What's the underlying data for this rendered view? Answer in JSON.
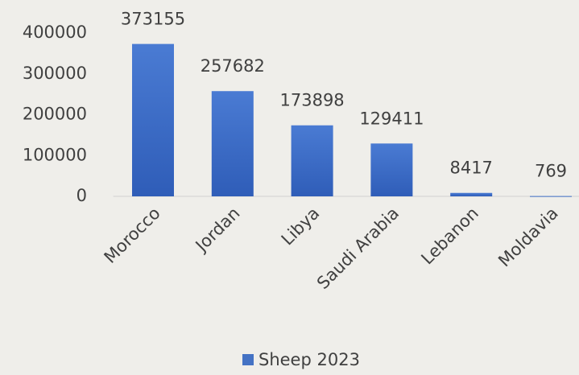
{
  "chart_data": {
    "type": "bar",
    "categories": [
      "Morocco",
      "Jordan",
      "Libya",
      "Saudi Arabia",
      "Lebanon",
      "Moldavia"
    ],
    "series": [
      {
        "name": "Sheep 2023",
        "color": "#4472c4",
        "values": [
          373155,
          257682,
          173898,
          129411,
          8417,
          769
        ]
      }
    ],
    "ylim": [
      0,
      400000
    ],
    "yticks": [
      0,
      100000,
      200000,
      300000,
      400000
    ],
    "grid": false,
    "legend": "bottom"
  }
}
